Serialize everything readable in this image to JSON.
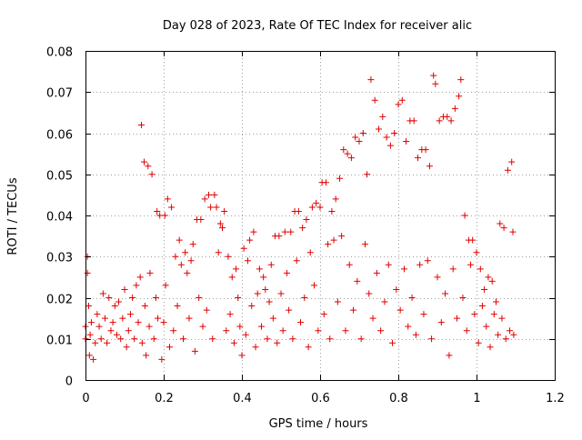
{
  "chart_data": {
    "type": "scatter",
    "title": "Day 028 of 2023, Rate Of TEC Index for receiver alic",
    "xlabel": "GPS time / hours",
    "ylabel": "ROTI / TECUs",
    "xlim": [
      0,
      1.2
    ],
    "ylim": [
      0,
      0.08
    ],
    "x_ticks": [
      "0",
      "0.2",
      "0.4",
      "0.6",
      "0.8",
      "1",
      "1.2"
    ],
    "y_ticks": [
      "0",
      "0.01",
      "0.02",
      "0.03",
      "0.04",
      "0.05",
      "0.06",
      "0.07",
      "0.08"
    ],
    "grid": true,
    "marker": "plus",
    "color": "#e00000",
    "points": [
      [
        0.0,
        0.013
      ],
      [
        0.0,
        0.01
      ],
      [
        0.005,
        0.026
      ],
      [
        0.005,
        0.03
      ],
      [
        0.008,
        0.018
      ],
      [
        0.01,
        0.006
      ],
      [
        0.012,
        0.011
      ],
      [
        0.015,
        0.014
      ],
      [
        0.02,
        0.005
      ],
      [
        0.025,
        0.009
      ],
      [
        0.03,
        0.016
      ],
      [
        0.035,
        0.013
      ],
      [
        0.04,
        0.01
      ],
      [
        0.045,
        0.021
      ],
      [
        0.05,
        0.015
      ],
      [
        0.055,
        0.009
      ],
      [
        0.06,
        0.02
      ],
      [
        0.065,
        0.012
      ],
      [
        0.07,
        0.014
      ],
      [
        0.075,
        0.018
      ],
      [
        0.08,
        0.011
      ],
      [
        0.085,
        0.019
      ],
      [
        0.09,
        0.01
      ],
      [
        0.095,
        0.015
      ],
      [
        0.1,
        0.022
      ],
      [
        0.105,
        0.008
      ],
      [
        0.11,
        0.012
      ],
      [
        0.115,
        0.016
      ],
      [
        0.12,
        0.02
      ],
      [
        0.125,
        0.01
      ],
      [
        0.13,
        0.023
      ],
      [
        0.135,
        0.014
      ],
      [
        0.14,
        0.025
      ],
      [
        0.143,
        0.062
      ],
      [
        0.145,
        0.009
      ],
      [
        0.15,
        0.053
      ],
      [
        0.152,
        0.018
      ],
      [
        0.155,
        0.006
      ],
      [
        0.16,
        0.052
      ],
      [
        0.163,
        0.013
      ],
      [
        0.165,
        0.026
      ],
      [
        0.17,
        0.05
      ],
      [
        0.175,
        0.01
      ],
      [
        0.18,
        0.02
      ],
      [
        0.183,
        0.041
      ],
      [
        0.185,
        0.015
      ],
      [
        0.19,
        0.04
      ],
      [
        0.195,
        0.005
      ],
      [
        0.2,
        0.014
      ],
      [
        0.203,
        0.04
      ],
      [
        0.205,
        0.023
      ],
      [
        0.21,
        0.044
      ],
      [
        0.215,
        0.008
      ],
      [
        0.22,
        0.042
      ],
      [
        0.225,
        0.012
      ],
      [
        0.23,
        0.03
      ],
      [
        0.235,
        0.018
      ],
      [
        0.24,
        0.034
      ],
      [
        0.245,
        0.028
      ],
      [
        0.25,
        0.01
      ],
      [
        0.255,
        0.031
      ],
      [
        0.26,
        0.026
      ],
      [
        0.265,
        0.015
      ],
      [
        0.27,
        0.029
      ],
      [
        0.275,
        0.033
      ],
      [
        0.28,
        0.007
      ],
      [
        0.285,
        0.039
      ],
      [
        0.29,
        0.02
      ],
      [
        0.295,
        0.039
      ],
      [
        0.3,
        0.013
      ],
      [
        0.305,
        0.044
      ],
      [
        0.31,
        0.017
      ],
      [
        0.315,
        0.045
      ],
      [
        0.32,
        0.042
      ],
      [
        0.325,
        0.01
      ],
      [
        0.33,
        0.045
      ],
      [
        0.335,
        0.042
      ],
      [
        0.34,
        0.031
      ],
      [
        0.345,
        0.038
      ],
      [
        0.35,
        0.037
      ],
      [
        0.355,
        0.041
      ],
      [
        0.36,
        0.012
      ],
      [
        0.365,
        0.03
      ],
      [
        0.37,
        0.016
      ],
      [
        0.375,
        0.025
      ],
      [
        0.38,
        0.009
      ],
      [
        0.385,
        0.027
      ],
      [
        0.39,
        0.02
      ],
      [
        0.395,
        0.013
      ],
      [
        0.4,
        0.006
      ],
      [
        0.405,
        0.032
      ],
      [
        0.41,
        0.011
      ],
      [
        0.415,
        0.029
      ],
      [
        0.42,
        0.034
      ],
      [
        0.425,
        0.018
      ],
      [
        0.43,
        0.036
      ],
      [
        0.435,
        0.008
      ],
      [
        0.44,
        0.021
      ],
      [
        0.445,
        0.027
      ],
      [
        0.45,
        0.013
      ],
      [
        0.455,
        0.025
      ],
      [
        0.46,
        0.022
      ],
      [
        0.465,
        0.01
      ],
      [
        0.47,
        0.019
      ],
      [
        0.475,
        0.028
      ],
      [
        0.48,
        0.015
      ],
      [
        0.485,
        0.035
      ],
      [
        0.49,
        0.009
      ],
      [
        0.495,
        0.035
      ],
      [
        0.5,
        0.021
      ],
      [
        0.505,
        0.012
      ],
      [
        0.51,
        0.036
      ],
      [
        0.515,
        0.026
      ],
      [
        0.52,
        0.017
      ],
      [
        0.525,
        0.036
      ],
      [
        0.53,
        0.01
      ],
      [
        0.535,
        0.041
      ],
      [
        0.54,
        0.029
      ],
      [
        0.545,
        0.041
      ],
      [
        0.55,
        0.014
      ],
      [
        0.555,
        0.037
      ],
      [
        0.56,
        0.02
      ],
      [
        0.565,
        0.039
      ],
      [
        0.57,
        0.008
      ],
      [
        0.575,
        0.031
      ],
      [
        0.58,
        0.042
      ],
      [
        0.585,
        0.023
      ],
      [
        0.59,
        0.043
      ],
      [
        0.595,
        0.012
      ],
      [
        0.6,
        0.042
      ],
      [
        0.605,
        0.048
      ],
      [
        0.61,
        0.016
      ],
      [
        0.615,
        0.048
      ],
      [
        0.62,
        0.033
      ],
      [
        0.625,
        0.01
      ],
      [
        0.63,
        0.041
      ],
      [
        0.635,
        0.034
      ],
      [
        0.64,
        0.044
      ],
      [
        0.645,
        0.019
      ],
      [
        0.65,
        0.049
      ],
      [
        0.655,
        0.035
      ],
      [
        0.66,
        0.056
      ],
      [
        0.665,
        0.012
      ],
      [
        0.67,
        0.055
      ],
      [
        0.675,
        0.028
      ],
      [
        0.68,
        0.054
      ],
      [
        0.685,
        0.017
      ],
      [
        0.69,
        0.059
      ],
      [
        0.695,
        0.024
      ],
      [
        0.7,
        0.058
      ],
      [
        0.705,
        0.01
      ],
      [
        0.71,
        0.06
      ],
      [
        0.715,
        0.033
      ],
      [
        0.72,
        0.05
      ],
      [
        0.725,
        0.021
      ],
      [
        0.73,
        0.073
      ],
      [
        0.735,
        0.015
      ],
      [
        0.74,
        0.068
      ],
      [
        0.745,
        0.026
      ],
      [
        0.75,
        0.061
      ],
      [
        0.755,
        0.012
      ],
      [
        0.76,
        0.064
      ],
      [
        0.765,
        0.019
      ],
      [
        0.77,
        0.059
      ],
      [
        0.775,
        0.028
      ],
      [
        0.78,
        0.057
      ],
      [
        0.785,
        0.009
      ],
      [
        0.79,
        0.06
      ],
      [
        0.795,
        0.022
      ],
      [
        0.8,
        0.067
      ],
      [
        0.805,
        0.017
      ],
      [
        0.81,
        0.068
      ],
      [
        0.815,
        0.027
      ],
      [
        0.82,
        0.058
      ],
      [
        0.825,
        0.013
      ],
      [
        0.83,
        0.063
      ],
      [
        0.835,
        0.02
      ],
      [
        0.84,
        0.063
      ],
      [
        0.845,
        0.011
      ],
      [
        0.85,
        0.054
      ],
      [
        0.855,
        0.028
      ],
      [
        0.86,
        0.056
      ],
      [
        0.865,
        0.016
      ],
      [
        0.87,
        0.056
      ],
      [
        0.875,
        0.029
      ],
      [
        0.88,
        0.052
      ],
      [
        0.885,
        0.01
      ],
      [
        0.89,
        0.074
      ],
      [
        0.895,
        0.072
      ],
      [
        0.9,
        0.025
      ],
      [
        0.905,
        0.063
      ],
      [
        0.91,
        0.014
      ],
      [
        0.915,
        0.064
      ],
      [
        0.92,
        0.021
      ],
      [
        0.925,
        0.064
      ],
      [
        0.93,
        0.006
      ],
      [
        0.935,
        0.063
      ],
      [
        0.94,
        0.027
      ],
      [
        0.945,
        0.066
      ],
      [
        0.95,
        0.015
      ],
      [
        0.955,
        0.069
      ],
      [
        0.96,
        0.073
      ],
      [
        0.965,
        0.02
      ],
      [
        0.97,
        0.04
      ],
      [
        0.975,
        0.012
      ],
      [
        0.98,
        0.034
      ],
      [
        0.985,
        0.028
      ],
      [
        0.99,
        0.034
      ],
      [
        0.995,
        0.016
      ],
      [
        1.0,
        0.031
      ],
      [
        1.005,
        0.009
      ],
      [
        1.01,
        0.027
      ],
      [
        1.015,
        0.018
      ],
      [
        1.02,
        0.022
      ],
      [
        1.025,
        0.013
      ],
      [
        1.03,
        0.025
      ],
      [
        1.035,
        0.008
      ],
      [
        1.04,
        0.024
      ],
      [
        1.045,
        0.016
      ],
      [
        1.05,
        0.019
      ],
      [
        1.055,
        0.011
      ],
      [
        1.06,
        0.038
      ],
      [
        1.065,
        0.015
      ],
      [
        1.07,
        0.037
      ],
      [
        1.075,
        0.01
      ],
      [
        1.08,
        0.051
      ],
      [
        1.085,
        0.012
      ],
      [
        1.09,
        0.053
      ],
      [
        1.093,
        0.036
      ],
      [
        1.095,
        0.011
      ]
    ]
  }
}
